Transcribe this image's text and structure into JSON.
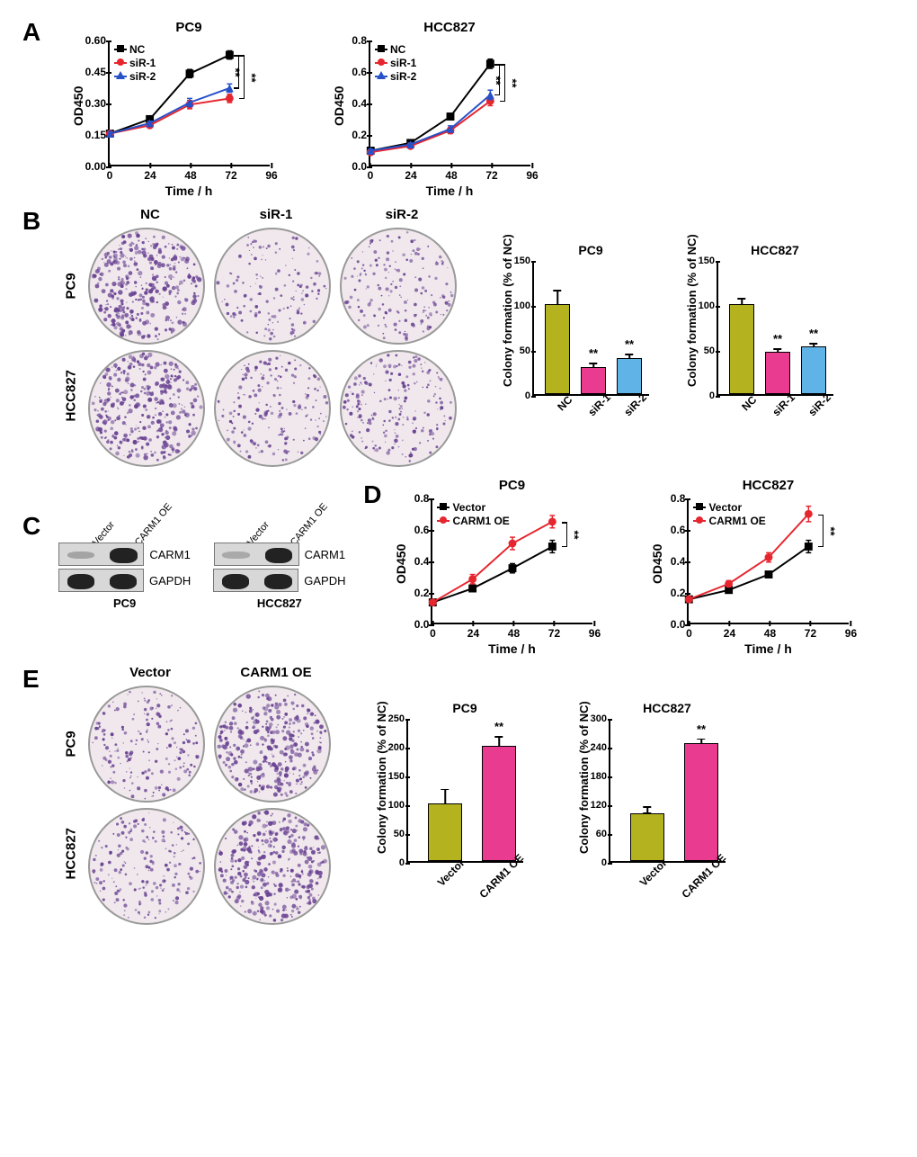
{
  "colors": {
    "nc_black": "#000000",
    "sir1_red": "#e6262f",
    "sir2_blue": "#2651c9",
    "bar_olive": "#b5b21f",
    "bar_magenta": "#e93b8f",
    "bar_sky": "#5fb3e6",
    "dish_stain": "#6b4594"
  },
  "panelA": {
    "letter": "A",
    "charts": [
      {
        "title": "PC9",
        "ylabel": "OD450",
        "xlabel": "Time / h",
        "ylim": [
          0,
          0.6
        ],
        "yticks": [
          "0.00",
          "0.15",
          "0.30",
          "0.45",
          "0.60"
        ],
        "xlim": [
          0,
          96
        ],
        "xticks": [
          "0",
          "24",
          "48",
          "72",
          "96"
        ],
        "legend": [
          {
            "label": "NC",
            "color": "#000000",
            "marker": "square"
          },
          {
            "label": "siR-1",
            "color": "#e6262f",
            "marker": "circle"
          },
          {
            "label": "siR-2",
            "color": "#2651c9",
            "marker": "triangle"
          }
        ],
        "series": {
          "NC": {
            "x": [
              0,
              24,
              48,
              72
            ],
            "y": [
              0.15,
              0.22,
              0.44,
              0.53
            ],
            "err": [
              0.01,
              0.01,
              0.02,
              0.02
            ],
            "color": "#000000",
            "marker": "square"
          },
          "siR1": {
            "x": [
              0,
              24,
              48,
              72
            ],
            "y": [
              0.15,
              0.19,
              0.29,
              0.32
            ],
            "err": [
              0.01,
              0.01,
              0.02,
              0.02
            ],
            "color": "#e6262f",
            "marker": "circle"
          },
          "siR2": {
            "x": [
              0,
              24,
              48,
              72
            ],
            "y": [
              0.15,
              0.2,
              0.3,
              0.37
            ],
            "err": [
              0.01,
              0.01,
              0.02,
              0.02
            ],
            "color": "#2651c9",
            "marker": "triangle"
          }
        },
        "sig": "**"
      },
      {
        "title": "HCC827",
        "ylabel": "OD450",
        "xlabel": "Time / h",
        "ylim": [
          0,
          0.8
        ],
        "yticks": [
          "0.0",
          "0.2",
          "0.4",
          "0.6",
          "0.8"
        ],
        "xlim": [
          0,
          96
        ],
        "xticks": [
          "0",
          "24",
          "48",
          "72",
          "96"
        ],
        "legend": [
          {
            "label": "NC",
            "color": "#000000",
            "marker": "square"
          },
          {
            "label": "siR-1",
            "color": "#e6262f",
            "marker": "circle"
          },
          {
            "label": "siR-2",
            "color": "#2651c9",
            "marker": "triangle"
          }
        ],
        "series": {
          "NC": {
            "x": [
              0,
              24,
              48,
              72
            ],
            "y": [
              0.09,
              0.14,
              0.31,
              0.65
            ],
            "err": [
              0.01,
              0.01,
              0.02,
              0.03
            ],
            "color": "#000000",
            "marker": "square"
          },
          "siR1": {
            "x": [
              0,
              24,
              48,
              72
            ],
            "y": [
              0.08,
              0.12,
              0.22,
              0.41
            ],
            "err": [
              0.01,
              0.01,
              0.02,
              0.03
            ],
            "color": "#e6262f",
            "marker": "circle"
          },
          "siR2": {
            "x": [
              0,
              24,
              48,
              72
            ],
            "y": [
              0.09,
              0.13,
              0.23,
              0.45
            ],
            "err": [
              0.01,
              0.01,
              0.02,
              0.03
            ],
            "color": "#2651c9",
            "marker": "triangle"
          }
        },
        "sig": "**"
      }
    ]
  },
  "panelB": {
    "letter": "B",
    "dishes": {
      "cols": [
        "NC",
        "siR-1",
        "siR-2"
      ],
      "rows": [
        "PC9",
        "HCC827"
      ],
      "density": [
        [
          1.0,
          0.35,
          0.42
        ],
        [
          1.0,
          0.48,
          0.53
        ]
      ]
    },
    "bars": [
      {
        "title": "PC9",
        "ylabel": "Colony formation (% of NC)",
        "ylim": [
          0,
          150
        ],
        "yticks": [
          "0",
          "50",
          "100",
          "150"
        ],
        "cats": [
          "NC",
          "siR-1",
          "siR-2"
        ],
        "vals": [
          100,
          30,
          40
        ],
        "errs": [
          17,
          6,
          6
        ],
        "colors": [
          "#b5b21f",
          "#e93b8f",
          "#5fb3e6"
        ],
        "stars": [
          "",
          "**",
          "**"
        ]
      },
      {
        "title": "HCC827",
        "ylabel": "Colony formation (% of NC)",
        "ylim": [
          0,
          150
        ],
        "yticks": [
          "0",
          "50",
          "100",
          "150"
        ],
        "cats": [
          "NC",
          "siR-1",
          "siR-2"
        ],
        "vals": [
          100,
          47,
          53
        ],
        "errs": [
          8,
          5,
          5
        ],
        "colors": [
          "#b5b21f",
          "#e93b8f",
          "#5fb3e6"
        ],
        "stars": [
          "",
          "**",
          "**"
        ]
      }
    ]
  },
  "panelC": {
    "letter": "C",
    "blots": [
      {
        "cell": "PC9",
        "lanes": [
          "Vector",
          "CARM1 OE"
        ],
        "rows": [
          {
            "target": "CARM1",
            "intensity": [
              0.15,
              1.0
            ]
          },
          {
            "target": "GAPDH",
            "intensity": [
              1.0,
              1.0
            ]
          }
        ]
      },
      {
        "cell": "HCC827",
        "lanes": [
          "Vector",
          "CARM1 OE"
        ],
        "rows": [
          {
            "target": "CARM1",
            "intensity": [
              0.12,
              1.0
            ]
          },
          {
            "target": "GAPDH",
            "intensity": [
              1.0,
              1.0
            ]
          }
        ]
      }
    ]
  },
  "panelD": {
    "letter": "D",
    "charts": [
      {
        "title": "PC9",
        "ylabel": "OD450",
        "xlabel": "Time / h",
        "ylim": [
          0,
          0.8
        ],
        "yticks": [
          "0.0",
          "0.2",
          "0.4",
          "0.6",
          "0.8"
        ],
        "xlim": [
          0,
          96
        ],
        "xticks": [
          "0",
          "24",
          "48",
          "72",
          "96"
        ],
        "legend": [
          {
            "label": "Vector",
            "color": "#000000",
            "marker": "square"
          },
          {
            "label": "CARM1 OE",
            "color": "#e6262f",
            "marker": "circle"
          }
        ],
        "series": {
          "Vector": {
            "x": [
              0,
              24,
              48,
              72
            ],
            "y": [
              0.13,
              0.22,
              0.35,
              0.49
            ],
            "err": [
              0.01,
              0.02,
              0.03,
              0.04
            ],
            "color": "#000000",
            "marker": "square"
          },
          "OE": {
            "x": [
              0,
              24,
              48,
              72
            ],
            "y": [
              0.13,
              0.28,
              0.51,
              0.65
            ],
            "err": [
              0.01,
              0.03,
              0.04,
              0.04
            ],
            "color": "#e6262f",
            "marker": "circle"
          }
        },
        "sig": "**"
      },
      {
        "title": "HCC827",
        "ylabel": "OD450",
        "xlabel": "Time / h",
        "ylim": [
          0,
          0.8
        ],
        "yticks": [
          "0.0",
          "0.2",
          "0.4",
          "0.6",
          "0.8"
        ],
        "xlim": [
          0,
          96
        ],
        "xticks": [
          "0",
          "24",
          "48",
          "72",
          "96"
        ],
        "legend": [
          {
            "label": "Vector",
            "color": "#000000",
            "marker": "square"
          },
          {
            "label": "CARM1 OE",
            "color": "#e6262f",
            "marker": "circle"
          }
        ],
        "series": {
          "Vector": {
            "x": [
              0,
              24,
              48,
              72
            ],
            "y": [
              0.15,
              0.21,
              0.31,
              0.49
            ],
            "err": [
              0.01,
              0.02,
              0.02,
              0.04
            ],
            "color": "#000000",
            "marker": "square"
          },
          "OE": {
            "x": [
              0,
              24,
              48,
              72
            ],
            "y": [
              0.15,
              0.25,
              0.42,
              0.7
            ],
            "err": [
              0.01,
              0.02,
              0.03,
              0.05
            ],
            "color": "#e6262f",
            "marker": "circle"
          }
        },
        "sig": "**"
      }
    ]
  },
  "panelE": {
    "letter": "E",
    "dishes": {
      "cols": [
        "Vector",
        "CARM1 OE"
      ],
      "rows": [
        "PC9",
        "HCC827"
      ],
      "density": [
        [
          0.5,
          1.0
        ],
        [
          0.5,
          1.0
        ]
      ]
    },
    "bars": [
      {
        "title": "PC9",
        "ylabel": "Colony formation (% of NC)",
        "ylim": [
          0,
          250
        ],
        "yticks": [
          "0",
          "50",
          "100",
          "150",
          "200",
          "250"
        ],
        "cats": [
          "Vector",
          "CARM1 OE"
        ],
        "vals": [
          100,
          200
        ],
        "errs": [
          27,
          18
        ],
        "colors": [
          "#b5b21f",
          "#e93b8f"
        ],
        "stars": [
          "",
          "**"
        ]
      },
      {
        "title": "HCC827",
        "ylabel": "Colony formation (% of NC)",
        "ylim": [
          0,
          300
        ],
        "yticks": [
          "0",
          "60",
          "120",
          "180",
          "240",
          "300"
        ],
        "cats": [
          "Vector",
          "CARM1 OE"
        ],
        "vals": [
          100,
          245
        ],
        "errs": [
          16,
          12
        ],
        "colors": [
          "#b5b21f",
          "#e93b8f"
        ],
        "stars": [
          "",
          "**"
        ]
      }
    ]
  }
}
